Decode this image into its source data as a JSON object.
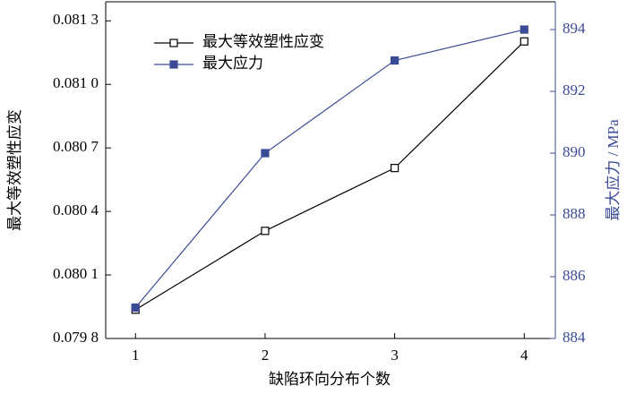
{
  "chart_data": {
    "type": "line",
    "x_label": "缺陷环向分布个数",
    "y_label": "最大等效塑性应变",
    "y2_label": "最大应力 / MPa",
    "x": [
      1,
      2,
      3,
      4
    ],
    "xlim": [
      0.77,
      4.24
    ],
    "xticks": [
      1,
      2,
      3,
      4
    ],
    "ylim": [
      0.0798,
      0.08139
    ],
    "yticks": [
      {
        "value": 0.0798,
        "label": "0.079 8"
      },
      {
        "value": 0.0801,
        "label": "0.080 1"
      },
      {
        "value": 0.0804,
        "label": "0.080 4"
      },
      {
        "value": 0.0807,
        "label": "0.080 7"
      },
      {
        "value": 0.081,
        "label": "0.081 0"
      },
      {
        "value": 0.0813,
        "label": "0.081 3"
      }
    ],
    "y2lim": [
      884,
      894.9
    ],
    "y2ticks": [
      884,
      886,
      888,
      890,
      892,
      894
    ],
    "y2_color": "#3b4a96",
    "legend": "upper left",
    "series": [
      {
        "name": "最大等效塑性应变",
        "color": "#000000",
        "marker": "open-square",
        "values": [
          0.079936,
          0.080308,
          0.080605,
          0.081203
        ]
      },
      {
        "name": "最大应力",
        "color": "#3b4a96",
        "marker": "filled-square",
        "axis": "y2",
        "values": [
          885.0,
          890.0,
          893.0,
          894.0
        ]
      }
    ]
  }
}
